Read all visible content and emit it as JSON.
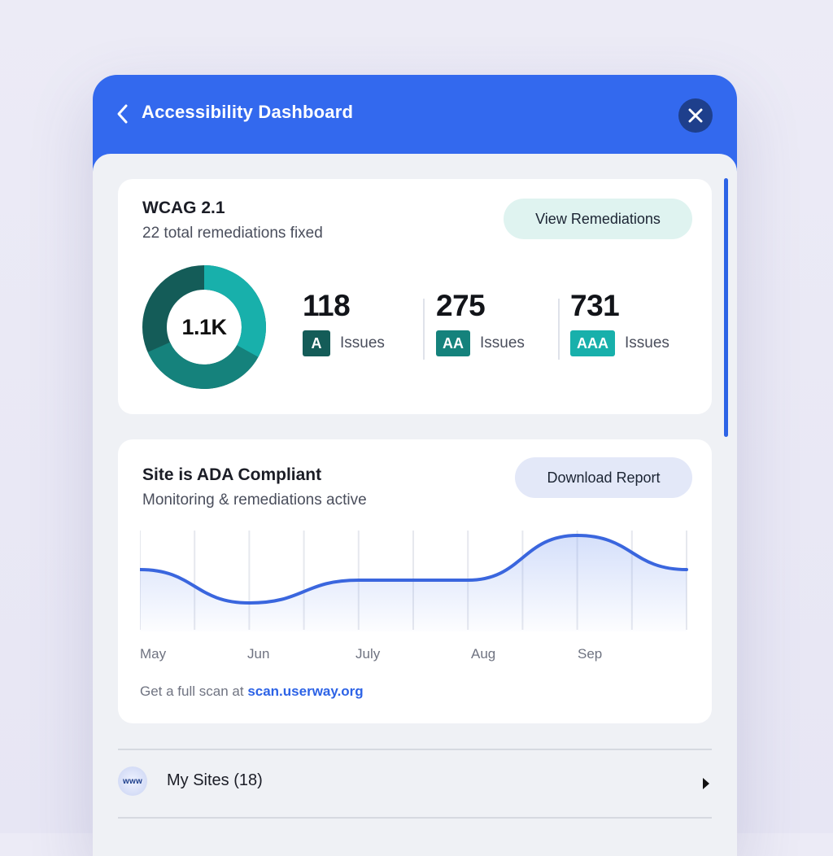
{
  "header": {
    "title": "Accessibility Dashboard"
  },
  "wcag_card": {
    "title": "WCAG 2.1",
    "subtitle": "22 total remediations fixed",
    "button_label": "View Remediations",
    "donut_total": "1.1K",
    "stats": [
      {
        "value": "118",
        "badge": "A",
        "label": "Issues",
        "color": "#145c58"
      },
      {
        "value": "275",
        "badge": "AA",
        "label": "Issues",
        "color": "#15827c"
      },
      {
        "value": "731",
        "badge": "AAA",
        "label": "Issues",
        "color": "#18b0ab"
      }
    ]
  },
  "compliance_card": {
    "title": "Site is ADA Compliant",
    "subtitle": "Monitoring & remediations active",
    "button_label": "Download Report",
    "scan_prefix": "Get a full scan at",
    "scan_link": "scan.userway.org"
  },
  "chart_data": {
    "type": "line",
    "x_labels": [
      "May",
      "Jun",
      "July",
      "Aug",
      "Sep"
    ],
    "values": [
      0.58,
      0.17,
      0.45,
      0.45,
      1.0,
      0.58
    ],
    "grid": "vertical",
    "ylim": [
      0,
      1
    ]
  },
  "sites": {
    "label": "My Sites (18)",
    "icon_text": "www"
  },
  "colors": {
    "accent": "#3369ee",
    "link": "#2d63e6",
    "teal_dark": "#145c58",
    "teal_mid": "#15827c",
    "teal_light": "#18b0ab"
  }
}
